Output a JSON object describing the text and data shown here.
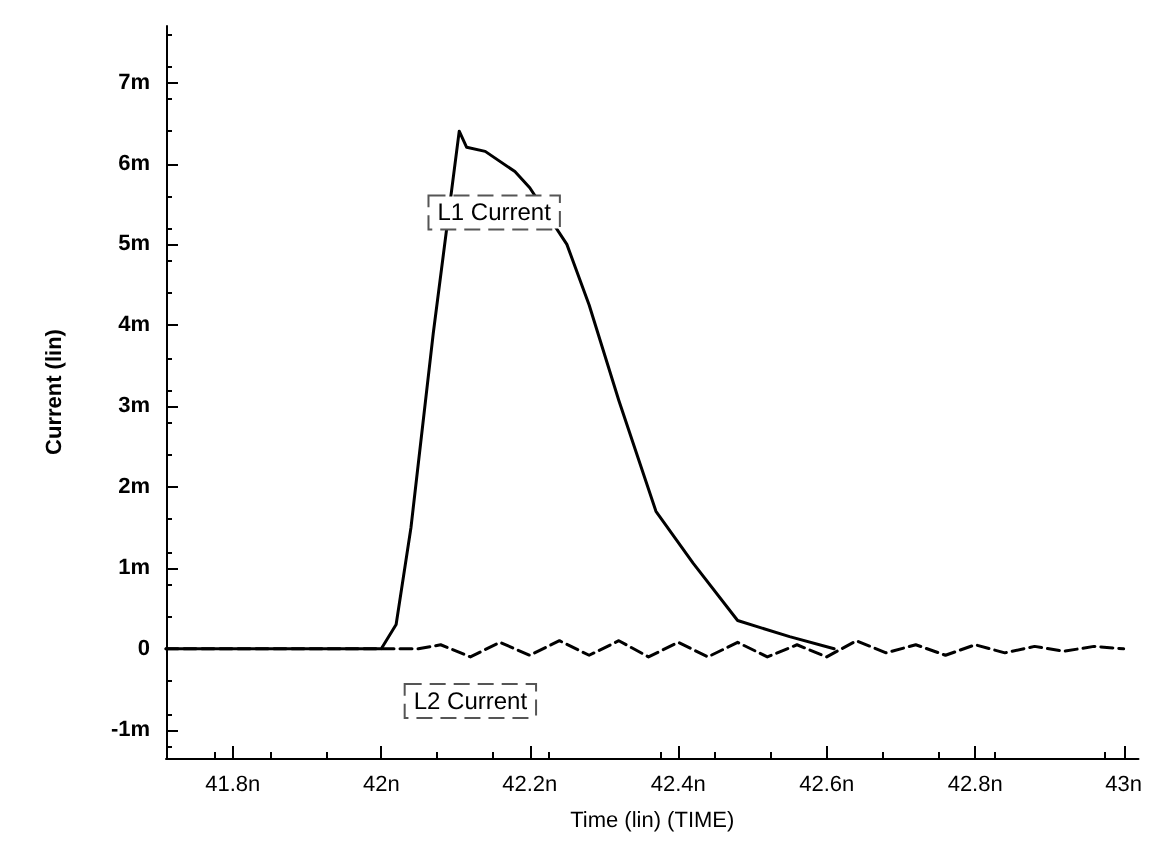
{
  "chart_data": {
    "type": "line",
    "xlabel": "Time (lin) (TIME)",
    "ylabel": "Current (lin)",
    "xlim": [
      41.71,
      43.02
    ],
    "ylim": [
      -1.35,
      7.7
    ],
    "xticks": [
      {
        "value": 41.8,
        "label": "41.8n"
      },
      {
        "value": 42.0,
        "label": "42n"
      },
      {
        "value": 42.2,
        "label": "42.2n"
      },
      {
        "value": 42.4,
        "label": "42.4n"
      },
      {
        "value": 42.6,
        "label": "42.6n"
      },
      {
        "value": 42.8,
        "label": "42.8n"
      },
      {
        "value": 43.0,
        "label": "43n"
      }
    ],
    "yticks": [
      {
        "value": -1,
        "label": "-1m"
      },
      {
        "value": 0,
        "label": "0"
      },
      {
        "value": 1,
        "label": "1m"
      },
      {
        "value": 2,
        "label": "2m"
      },
      {
        "value": 3,
        "label": "3m"
      },
      {
        "value": 4,
        "label": "4m"
      },
      {
        "value": 5,
        "label": "5m"
      },
      {
        "value": 6,
        "label": "6m"
      },
      {
        "value": 7,
        "label": "7m"
      }
    ],
    "grid": false,
    "legend": false,
    "marker": "none",
    "series": [
      {
        "name": "L1 Current",
        "color": "#000000",
        "line_style": "solid",
        "x": [
          41.71,
          42.0,
          42.02,
          42.04,
          42.07,
          42.105,
          42.115,
          42.14,
          42.18,
          42.2,
          42.25,
          42.28,
          42.32,
          42.37,
          42.42,
          42.48,
          42.55,
          42.61
        ],
        "values": [
          0,
          0,
          0.3,
          1.5,
          3.9,
          6.4,
          6.2,
          6.15,
          5.9,
          5.7,
          5.0,
          4.25,
          3.07,
          1.7,
          1.06,
          0.35,
          0.15,
          0
        ]
      },
      {
        "name": "L2 Current",
        "color": "#000000",
        "line_style": "dashed",
        "x": [
          41.71,
          42.05,
          42.08,
          42.12,
          42.16,
          42.2,
          42.24,
          42.28,
          42.32,
          42.36,
          42.4,
          42.44,
          42.48,
          42.52,
          42.56,
          42.6,
          42.64,
          42.68,
          42.72,
          42.76,
          42.8,
          42.84,
          42.88,
          42.92,
          42.96,
          43.0
        ],
        "values": [
          0,
          0,
          0.05,
          -0.1,
          0.08,
          -0.08,
          0.1,
          -0.08,
          0.1,
          -0.1,
          0.08,
          -0.1,
          0.08,
          -0.1,
          0.05,
          -0.1,
          0.1,
          -0.05,
          0.05,
          -0.08,
          0.05,
          -0.05,
          0.03,
          -0.03,
          0.03,
          0
        ]
      }
    ]
  }
}
